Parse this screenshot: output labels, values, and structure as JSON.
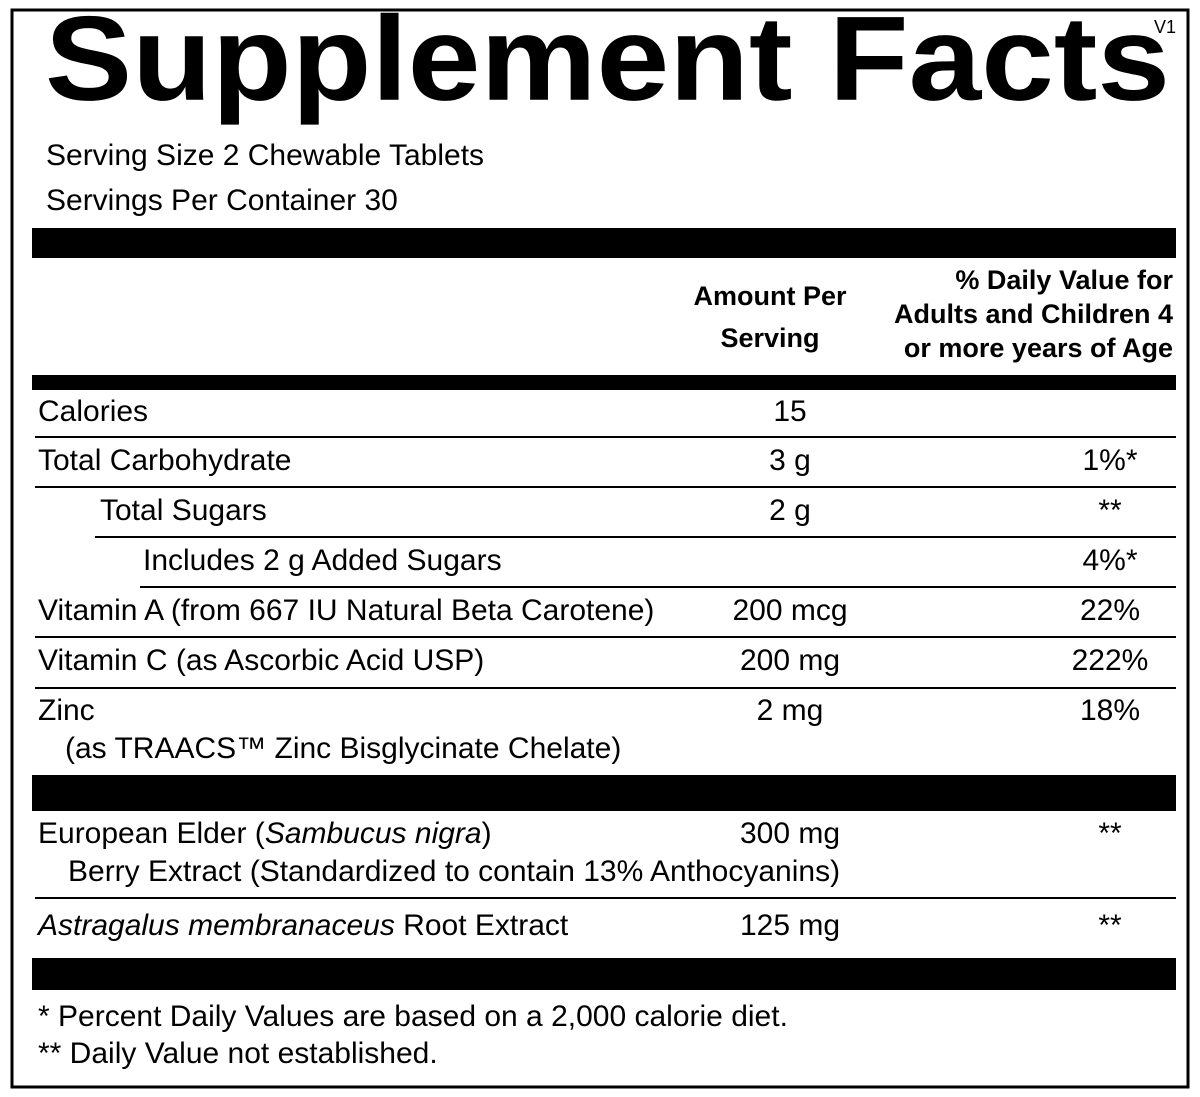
{
  "header": {
    "title": "Supplement Facts",
    "version": "V1",
    "serving_size": "Serving Size 2 Chewable Tablets",
    "servings_per_container": "Servings Per Container 30"
  },
  "columns": {
    "amount": [
      "Amount Per",
      "Serving"
    ],
    "daily_value": [
      "% Daily Value for",
      "Adults and Children 4",
      "or more years of Age"
    ]
  },
  "rows": [
    {
      "name": [
        [
          {
            "text": "Calories"
          }
        ]
      ],
      "amount": "15"
    },
    {
      "name": [
        [
          {
            "text": "Total Carbohydrate"
          }
        ]
      ],
      "amount": "3 g",
      "daily_value": "1%*"
    },
    {
      "name": [
        [
          {
            "text": "Total Sugars"
          }
        ]
      ],
      "amount": "2 g",
      "daily_value": "**"
    },
    {
      "name": [
        [
          {
            "text": "Includes 2 g Added Sugars"
          }
        ]
      ],
      "daily_value": "4%*"
    },
    {
      "name": [
        [
          {
            "text": "Vitamin A (from 667 IU Natural Beta Carotene)"
          }
        ]
      ],
      "amount": "200 mcg",
      "daily_value": "22%"
    },
    {
      "name": [
        [
          {
            "text": "Vitamin C (as Ascorbic Acid USP)"
          }
        ]
      ],
      "amount": "200 mg",
      "daily_value": "222%"
    },
    {
      "name": [
        [
          {
            "text": "Zinc"
          }
        ],
        [
          {
            "text": "(as TRAACS™ Zinc Bisglycinate Chelate)"
          }
        ]
      ],
      "amount": "2 mg",
      "daily_value": "18%"
    },
    {
      "name": [
        [
          {
            "text": "European Elder ("
          },
          {
            "text": "Sambucus nigra",
            "italic": true
          },
          {
            "text": ")"
          }
        ],
        [
          {
            "text": "Berry Extract (Standardized to contain 13% Anthocyanins)"
          }
        ]
      ],
      "amount": "300 mg",
      "daily_value": "**"
    },
    {
      "name": [
        [
          {
            "text": "Astragalus membranaceus",
            "italic": true
          },
          {
            "text": " Root Extract"
          }
        ]
      ],
      "amount": "125 mg",
      "daily_value": "**"
    }
  ],
  "footnotes": [
    "* Percent Daily Values are based on a 2,000 calorie diet.",
    "** Daily Value not established."
  ]
}
